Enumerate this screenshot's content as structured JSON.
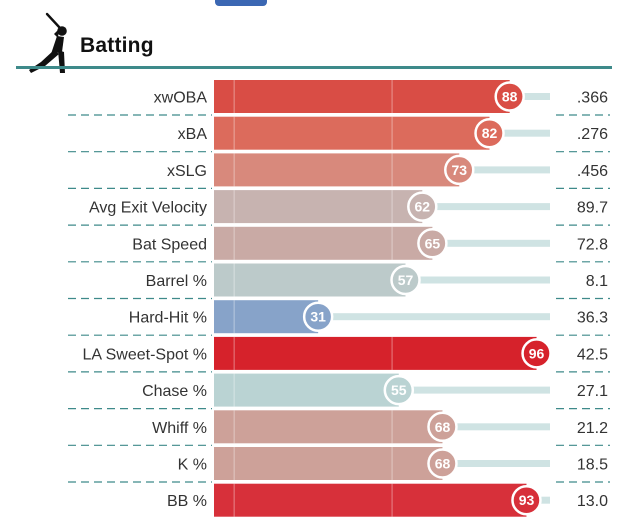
{
  "section": {
    "title": "Batting",
    "icon": "batter-icon"
  },
  "colors": {
    "header_rule": "#3e8a8a",
    "divider": "#3e8a8a",
    "track": "#cfe3e3",
    "top_tab": "#3b67b3"
  },
  "chart_data": {
    "type": "bar",
    "orientation": "horizontal",
    "scale": [
      0,
      100
    ],
    "rows": [
      {
        "label": "xwOBA",
        "percentile": 88,
        "value": ".366",
        "color": "#d94d45"
      },
      {
        "label": "xBA",
        "percentile": 82,
        "value": ".276",
        "color": "#dc6b5c"
      },
      {
        "label": "xSLG",
        "percentile": 73,
        "value": ".456",
        "color": "#d8897c"
      },
      {
        "label": "Avg Exit Velocity",
        "percentile": 62,
        "value": "89.7",
        "color": "#c7b3b0"
      },
      {
        "label": "Bat Speed",
        "percentile": 65,
        "value": "72.8",
        "color": "#c9aaa5"
      },
      {
        "label": "Barrel %",
        "percentile": 57,
        "value": "8.1",
        "color": "#bccaca"
      },
      {
        "label": "Hard-Hit %",
        "percentile": 31,
        "value": "36.3",
        "color": "#87a3c9"
      },
      {
        "label": "LA Sweet-Spot %",
        "percentile": 96,
        "value": "42.5",
        "color": "#d6222b"
      },
      {
        "label": "Chase %",
        "percentile": 55,
        "value": "27.1",
        "color": "#bad3d3"
      },
      {
        "label": "Whiff %",
        "percentile": 68,
        "value": "21.2",
        "color": "#cda199"
      },
      {
        "label": "K %",
        "percentile": 68,
        "value": "18.5",
        "color": "#cda199"
      },
      {
        "label": "BB %",
        "percentile": 93,
        "value": "13.0",
        "color": "#d7303a"
      }
    ]
  }
}
